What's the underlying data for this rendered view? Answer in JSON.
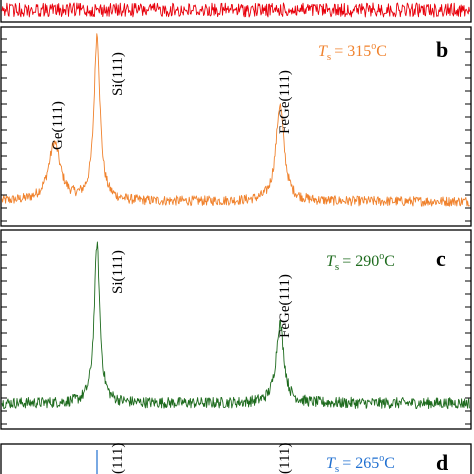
{
  "chart_data": [
    {
      "type": "line",
      "panel": "a",
      "color": "#e8000b",
      "temperature": null,
      "letter": "",
      "x_range": [
        25,
        70
      ],
      "y_range": [
        0,
        1
      ],
      "peaks": [],
      "partially_visible": true
    },
    {
      "type": "line",
      "panel": "b",
      "color": "#f0822d",
      "temperature": {
        "symbol": "T",
        "subscript": "s",
        "value": "= 315",
        "degree": "o",
        "unit": "C"
      },
      "letter": "b",
      "x_range": [
        25,
        70
      ],
      "y_range": [
        0,
        1
      ],
      "baseline": 0.1,
      "noise": 0.03,
      "peaks": [
        {
          "name": "Ge(111)",
          "x": 27.3,
          "height": 0.35,
          "width": 0.55,
          "label_visible": true
        },
        {
          "name": "Si(111)",
          "x": 28.45,
          "height": 1.0,
          "width": 0.28,
          "label_visible": true
        },
        {
          "name": "FeGe(111)",
          "x": 33.4,
          "height": 0.58,
          "width": 0.38,
          "label_visible": true
        }
      ]
    },
    {
      "type": "line",
      "panel": "c",
      "color": "#1e6b1e",
      "temperature": {
        "symbol": "T",
        "subscript": "s",
        "value": "= 290",
        "degree": "o",
        "unit": "C"
      },
      "letter": "c",
      "x_range": [
        25,
        70
      ],
      "y_range": [
        0,
        1
      ],
      "baseline": 0.08,
      "noise": 0.035,
      "peaks": [
        {
          "name": "Si(111)",
          "x": 28.45,
          "height": 1.0,
          "width": 0.26,
          "label_visible": true
        },
        {
          "name": "FeGe(111)",
          "x": 33.4,
          "height": 0.5,
          "width": 0.36,
          "label_visible": true
        }
      ]
    },
    {
      "type": "line",
      "panel": "d",
      "color": "#1f6fd0",
      "temperature": {
        "symbol": "T",
        "subscript": "s",
        "value": "= 265",
        "degree": "o",
        "unit": "C"
      },
      "letter": "d",
      "x_range": [
        25,
        70
      ],
      "y_range": [
        0,
        1
      ],
      "peaks": [
        {
          "name": "(111)",
          "x": 28.45,
          "label_visible": true
        },
        {
          "name": "(111)",
          "x": 33.4,
          "label_visible": true
        }
      ],
      "partially_visible": true
    }
  ]
}
